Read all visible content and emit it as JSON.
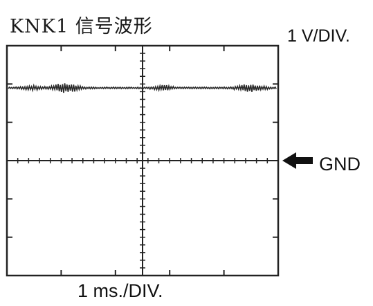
{
  "title": "KNK1 信号波形",
  "vertical_scale": "1 V/DIV.",
  "horizontal_scale": "1 ms./DIV.",
  "ground_marker": {
    "label": "GND",
    "icon": "left-arrow-icon"
  },
  "colors": {
    "trace": "#2a2a2a",
    "grid": "#222222",
    "background": "#ffffff"
  },
  "grid": {
    "horizontal_divisions": 5,
    "vertical_divisions": 6
  }
}
